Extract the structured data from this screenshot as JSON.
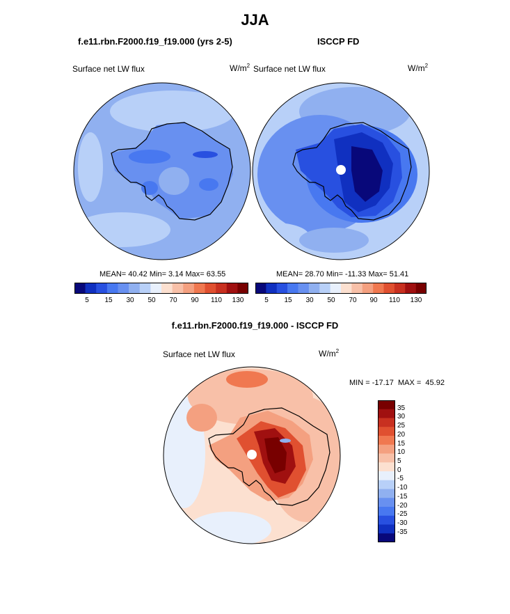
{
  "title": "JJA",
  "panels": [
    {
      "case_title": "f.e11.rbn.F2000.f19_f19.000 (yrs 2-5)",
      "variable": "Surface net LW flux",
      "units": "W/m",
      "units_sup": "2",
      "stats": "MEAN= 40.42  Min=  3.14  Max= 63.55",
      "colorbar_ticks": [
        "5",
        "15",
        "30",
        "50",
        "70",
        "90",
        "110",
        "130"
      ]
    },
    {
      "case_title": "ISCCP FD",
      "variable": "Surface net LW flux",
      "units": "W/m",
      "units_sup": "2",
      "stats": "MEAN= 28.70  Min= -11.33  Max= 51.41",
      "colorbar_ticks": [
        "5",
        "15",
        "30",
        "50",
        "70",
        "90",
        "110",
        "130"
      ]
    }
  ],
  "difference": {
    "title": "f.e11.rbn.F2000.f19_f19.000 - ISCCP FD",
    "variable": "Surface net LW flux",
    "units": "W/m",
    "units_sup": "2",
    "minmax": "MIN = -17.17  MAX =  45.92",
    "colorbar_labels": [
      "35",
      "30",
      "25",
      "20",
      "15",
      "10",
      "5",
      "0",
      "-5",
      "-10",
      "-15",
      "-20",
      "-25",
      "-30",
      "-35"
    ]
  },
  "colors": {
    "abs_scale": [
      "#08087a",
      "#1030c0",
      "#2850e0",
      "#4878f0",
      "#6890f0",
      "#90b0f0",
      "#b8d0f8",
      "#e8f0fc",
      "#fce0d0",
      "#f8c0a8",
      "#f4a080",
      "#f07850",
      "#e05030",
      "#c83020",
      "#a01010",
      "#780000"
    ],
    "diff_scale": [
      "#780000",
      "#a01010",
      "#c83020",
      "#e05030",
      "#f07850",
      "#f4a080",
      "#f8c0a8",
      "#fce0d0",
      "#e8f0fc",
      "#b8d0f8",
      "#90b0f0",
      "#6890f0",
      "#4878f0",
      "#2850e0",
      "#1030c0",
      "#08087a"
    ]
  }
}
